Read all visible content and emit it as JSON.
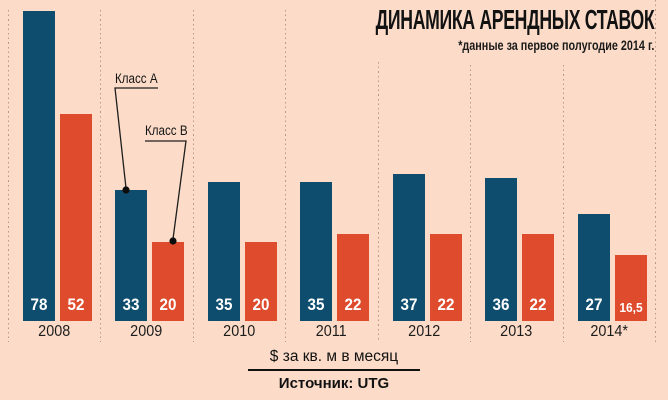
{
  "title": "ДИНАМИКА АРЕНДНЫХ СТАВОК",
  "subtitle": "*данные за первое полугодие 2014 г.",
  "legend": {
    "class_a": "Класс А",
    "class_b": "Класс В"
  },
  "footer": {
    "unit_label": "$ за кв. м в месяц",
    "source_label": "Источник: UTG"
  },
  "colors": {
    "background": "#fcdcc8",
    "class_a_bar": "#0e4d6d",
    "class_b_bar": "#de4b2d",
    "grid": "#b79a87",
    "text": "#141414",
    "value_text": "#ffffff"
  },
  "chart_data": {
    "type": "bar",
    "title": "ДИНАМИКА АРЕНДНЫХ СТАВОК",
    "subtitle": "*данные за первое полугодие 2014 г.",
    "unit": "$ за кв. м в месяц",
    "source": "Источник: UTG",
    "categories": [
      "2008",
      "2009",
      "2010",
      "2011",
      "2012",
      "2013",
      "2014*"
    ],
    "series": [
      {
        "name": "Класс А",
        "color": "#0e4d6d",
        "values": [
          78,
          33,
          35,
          35,
          37,
          36,
          27
        ],
        "labels": [
          "78",
          "33",
          "35",
          "35",
          "37",
          "36",
          "27"
        ]
      },
      {
        "name": "Класс В",
        "color": "#de4b2d",
        "values": [
          52,
          20,
          20,
          22,
          22,
          22,
          16.5
        ],
        "labels": [
          "52",
          "20",
          "20",
          "22",
          "22",
          "22",
          "16,5"
        ]
      }
    ],
    "value_axis_max": 78,
    "grid": "dotted vertical separators between year groups",
    "legend_position": "callout labels pointing to 2009 bars",
    "value_labels_position": "inside bars at bottom, white bold"
  }
}
